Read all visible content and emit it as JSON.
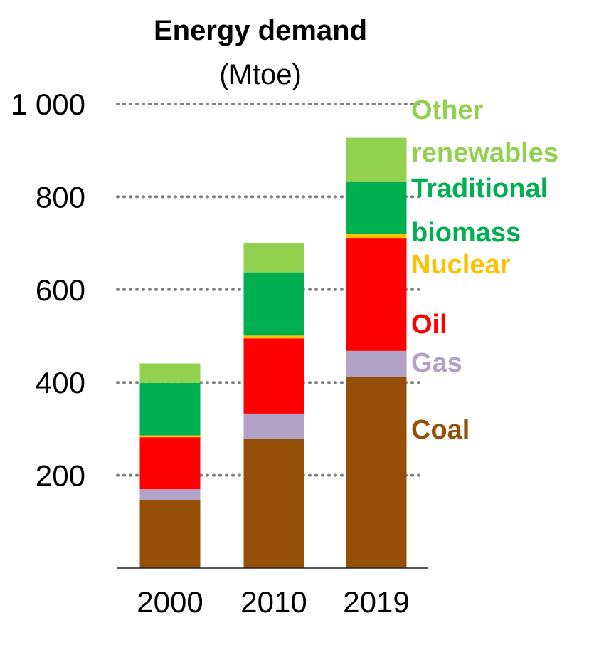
{
  "chart_data": {
    "type": "bar",
    "stacked": true,
    "title": "Energy demand",
    "subtitle": "(Mtoe)",
    "categories": [
      "2000",
      "2010",
      "2019"
    ],
    "ylim": [
      0,
      1000
    ],
    "y_ticks": [
      {
        "value": 200,
        "label": "200"
      },
      {
        "value": 400,
        "label": "400"
      },
      {
        "value": 600,
        "label": "600"
      },
      {
        "value": 800,
        "label": "800"
      },
      {
        "value": 1000,
        "label": "1 000"
      }
    ],
    "grid": "dotted horizontal",
    "legend": "right",
    "series": [
      {
        "name": "Coal",
        "color": "#954F07",
        "values": [
          146,
          278,
          413
        ]
      },
      {
        "name": "Gas",
        "color": "#B3A2C7",
        "values": [
          24,
          55,
          55
        ]
      },
      {
        "name": "Oil",
        "color": "#FF0000",
        "values": [
          112,
          162,
          242
        ]
      },
      {
        "name": "Nuclear",
        "color": "#FFC000",
        "values": [
          4,
          6,
          10
        ]
      },
      {
        "name": "Traditional biomass",
        "color": "#00B050",
        "values": [
          113,
          136,
          112
        ]
      },
      {
        "name": "Other renewables",
        "color": "#92D050",
        "values": [
          42,
          63,
          95
        ]
      }
    ],
    "legend_entries": [
      {
        "lines": [
          "Other",
          "renewables"
        ],
        "color": "#92D050"
      },
      {
        "lines": [
          "Traditional",
          "biomass"
        ],
        "color": "#00B050"
      },
      {
        "lines": [
          "Nuclear"
        ],
        "color": "#FFC000"
      },
      {
        "lines": [
          "Oil"
        ],
        "color": "#FF0000"
      },
      {
        "lines": [
          "Gas"
        ],
        "color": "#B3A2C7"
      },
      {
        "lines": [
          "Coal"
        ],
        "color": "#954F07"
      }
    ]
  }
}
